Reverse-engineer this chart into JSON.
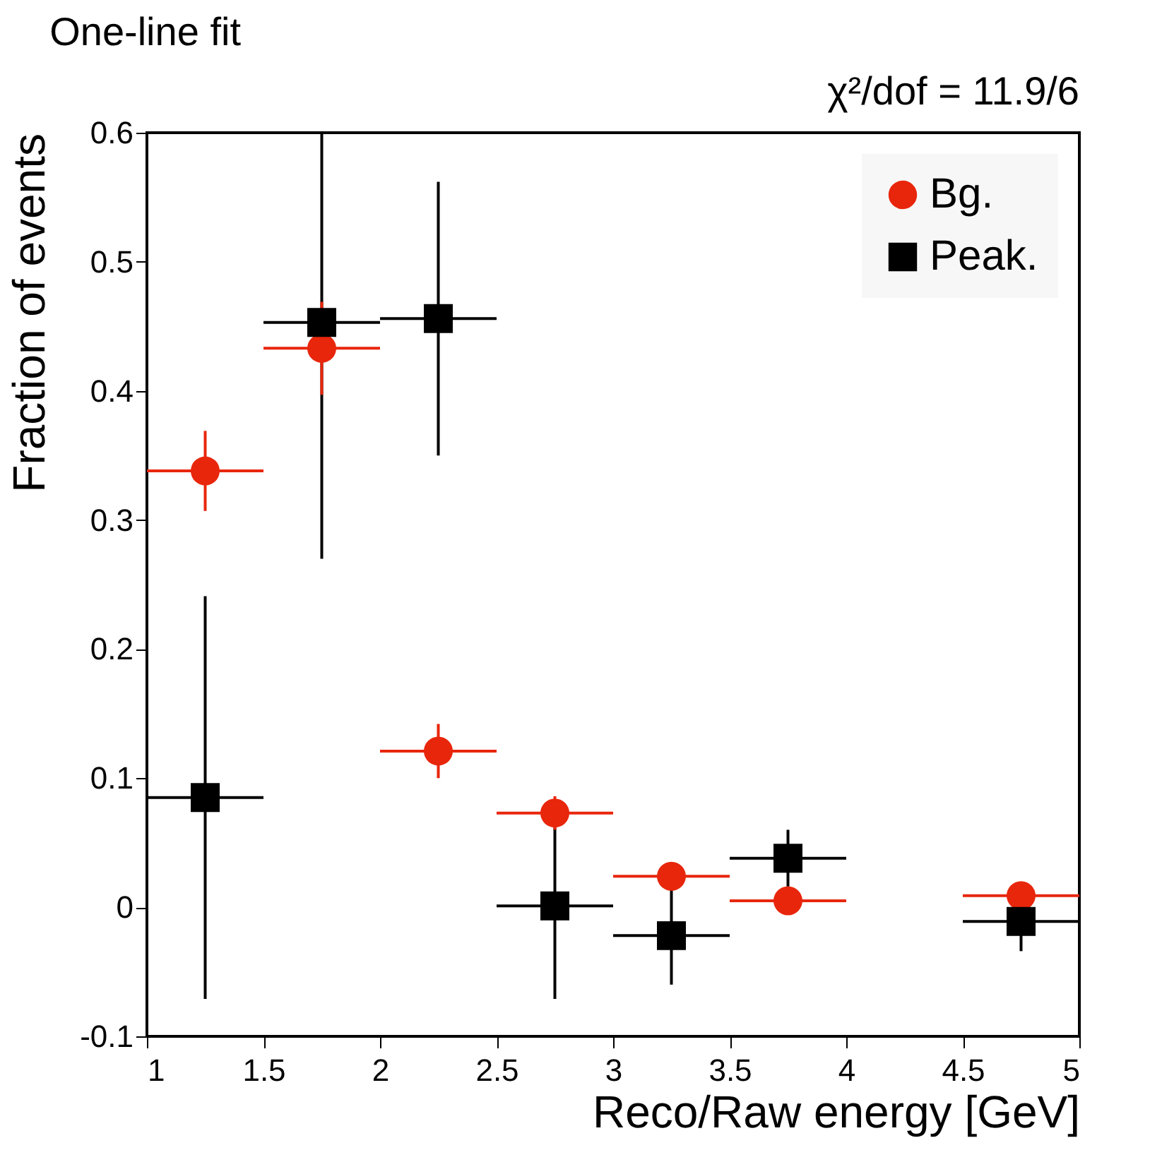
{
  "chart_data": {
    "type": "scatter",
    "title": "One-line fit",
    "xlabel": "Reco/Raw energy [GeV]",
    "ylabel": "Fraction of events",
    "annotations": [
      "χ²/dof = 11.9/6"
    ],
    "x": [
      1.25,
      1.75,
      2.25,
      2.75,
      3.25,
      3.75,
      4.75
    ],
    "series": [
      {
        "name": "Bg.",
        "color": "#e8260c",
        "marker": "circle",
        "values": [
          0.338,
          0.433,
          0.121,
          0.073,
          0.024,
          0.005,
          0.009
        ],
        "errors": [
          0.031,
          0.036,
          0.021,
          0.013,
          null,
          null,
          null
        ],
        "xerrors": [
          0.25,
          0.25,
          0.25,
          0.25,
          0.25,
          0.25,
          0.25
        ]
      },
      {
        "name": "Peak.",
        "color": "#000000",
        "marker": "square",
        "values": [
          0.085,
          0.453,
          0.456,
          0.001,
          -0.022,
          0.038,
          -0.011
        ],
        "errors": [
          0.156,
          [
            0.27,
            0.6
          ],
          0.106,
          0.072,
          0.038,
          0.022,
          0.023
        ],
        "xerrors": [
          0.25,
          0.25,
          0.25,
          0.25,
          0.25,
          0.25,
          0.25
        ]
      }
    ],
    "xlim": [
      1,
      5
    ],
    "xticks": [
      1,
      1.5,
      2,
      2.5,
      3,
      3.5,
      4,
      4.5,
      5
    ],
    "ylim": [
      -0.1,
      0.6
    ],
    "yticks": [
      -0.1,
      0,
      0.1,
      0.2,
      0.3,
      0.4,
      0.5,
      0.6
    ],
    "grid": false,
    "legend": "top right"
  }
}
